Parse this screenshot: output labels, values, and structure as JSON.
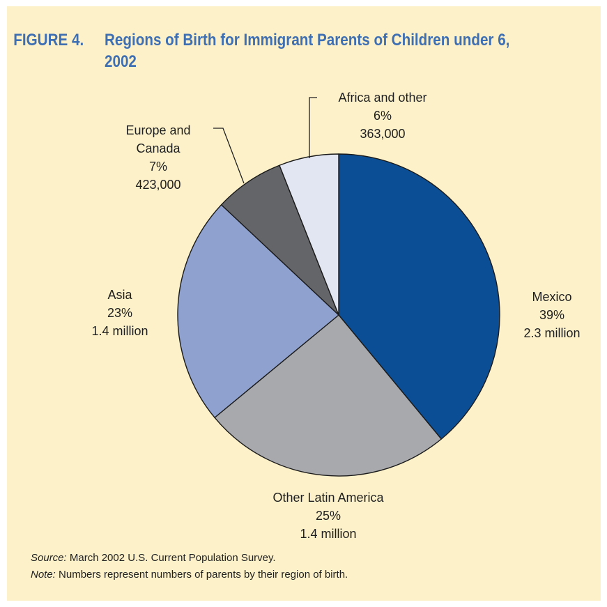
{
  "figure": {
    "number": "FIGURE 4.",
    "title": "Regions of Birth for Immigrant Parents of Children under 6, 2002"
  },
  "chart_data": {
    "type": "pie",
    "slices": [
      {
        "label": "Mexico",
        "percent": 39,
        "value_text": "39%",
        "count_text": "2.3 million",
        "color": "#0b4e96"
      },
      {
        "label": "Other Latin America",
        "percent": 25,
        "value_text": "25%",
        "count_text": "1.4 million",
        "color": "#a8a9ad"
      },
      {
        "label": "Asia",
        "percent": 23,
        "value_text": "23%",
        "count_text": "1.4 million",
        "color": "#8fa1cf"
      },
      {
        "label": "Europe and Canada",
        "label_lines": [
          "Europe and",
          "Canada"
        ],
        "percent": 7,
        "value_text": "7%",
        "count_text": "423,000",
        "color": "#646569"
      },
      {
        "label": "Africa and other",
        "percent": 6,
        "value_text": "6%",
        "count_text": "363,000",
        "color": "#e1e6f2"
      }
    ],
    "start": "12 o'clock",
    "direction": "clockwise"
  },
  "footer": {
    "source_label": "Source:",
    "source_text": " March 2002 U.S. Current Population Survey.",
    "note_label": "Note:",
    "note_text": " Numbers represent numbers of parents by their region of birth."
  },
  "colors": {
    "background": "#fdf1c9",
    "title": "#3f6fb3"
  }
}
